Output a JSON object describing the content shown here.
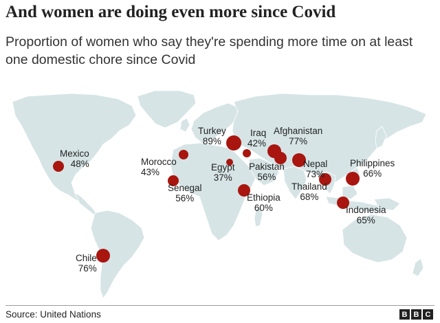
{
  "title": "And women are doing even more since Covid",
  "subtitle": "Proportion of women who say they're spending more time on at least one domestic chore since Covid",
  "source": "Source: United Nations",
  "logo_letters": [
    "B",
    "B",
    "C"
  ],
  "colors": {
    "land": "#d6e4e6",
    "bubble": "#a8160f",
    "text": "#222222"
  },
  "countries": [
    {
      "name": "Mexico",
      "value": "48%"
    },
    {
      "name": "Morocco",
      "value": "43%"
    },
    {
      "name": "Senegal",
      "value": "56%"
    },
    {
      "name": "Turkey",
      "value": "89%"
    },
    {
      "name": "Iraq",
      "value": "42%"
    },
    {
      "name": "Egypt",
      "value": "37%"
    },
    {
      "name": "Afghanistan",
      "value": "77%"
    },
    {
      "name": "Pakistan",
      "value": "56%"
    },
    {
      "name": "Nepal",
      "value": "73%"
    },
    {
      "name": "Ethiopia",
      "value": "60%"
    },
    {
      "name": "Thailand",
      "value": "68%"
    },
    {
      "name": "Philippines",
      "value": "66%"
    },
    {
      "name": "Indonesia",
      "value": "65%"
    },
    {
      "name": "Chile",
      "value": "76%"
    }
  ]
}
